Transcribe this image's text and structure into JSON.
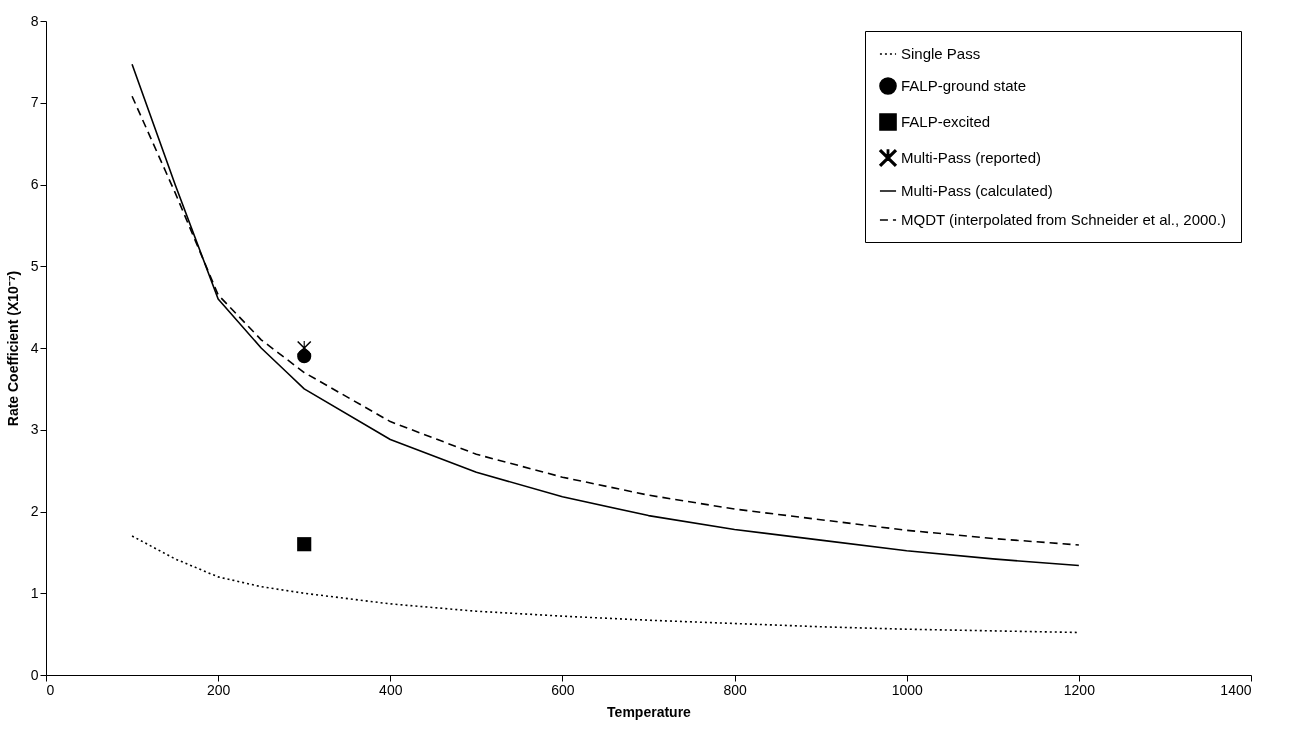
{
  "chart_data": {
    "type": "line",
    "xlabel": "Temperature",
    "ylabel": "Rate Coefficient (X10⁻⁷)",
    "xlim": [
      0,
      1400
    ],
    "xticks": [
      0,
      200,
      400,
      600,
      800,
      1000,
      1200,
      1400
    ],
    "ylim": [
      0,
      8
    ],
    "yticks": [
      0,
      1,
      2,
      3,
      4,
      5,
      6,
      7,
      8
    ],
    "grid": false,
    "legend": "top right",
    "series": [
      {
        "name": "Single Pass",
        "line_style": "dotted",
        "color": "#000000",
        "x": [
          100,
          150,
          200,
          250,
          300,
          400,
          500,
          600,
          700,
          800,
          900,
          1000,
          1100,
          1200
        ],
        "values": [
          1.7,
          1.42,
          1.2,
          1.08,
          1.0,
          0.87,
          0.78,
          0.72,
          0.67,
          0.63,
          0.59,
          0.56,
          0.54,
          0.52
        ]
      },
      {
        "name": "FALP-ground state",
        "type": "scatter",
        "marker": "circle",
        "color": "#000000",
        "x": [
          300
        ],
        "values": [
          3.9
        ]
      },
      {
        "name": "FALP-excited",
        "type": "scatter",
        "marker": "square",
        "color": "#000000",
        "x": [
          300
        ],
        "values": [
          1.6
        ]
      },
      {
        "name": "Multi-Pass (reported)",
        "type": "scatter",
        "marker": "star",
        "color": "#000000",
        "x": [
          300
        ],
        "values": [
          4.0
        ]
      },
      {
        "name": "Multi-Pass (calculated)",
        "line_style": "solid",
        "color": "#000000",
        "x": [
          100,
          150,
          200,
          250,
          280,
          300,
          400,
          500,
          600,
          700,
          800,
          900,
          1000,
          1100,
          1200
        ],
        "values": [
          7.47,
          6.0,
          4.6,
          4.0,
          3.7,
          3.5,
          2.88,
          2.48,
          2.18,
          1.95,
          1.78,
          1.65,
          1.52,
          1.42,
          1.34
        ]
      },
      {
        "name": "MQDT (interpolated from Schneider et al., 2000.)",
        "line_style": "dashed",
        "color": "#000000",
        "x": [
          100,
          150,
          200,
          250,
          300,
          400,
          500,
          600,
          700,
          800,
          900,
          1000,
          1100,
          1200
        ],
        "values": [
          7.08,
          5.9,
          4.65,
          4.1,
          3.7,
          3.1,
          2.7,
          2.42,
          2.2,
          2.03,
          1.9,
          1.77,
          1.67,
          1.59
        ]
      }
    ]
  }
}
